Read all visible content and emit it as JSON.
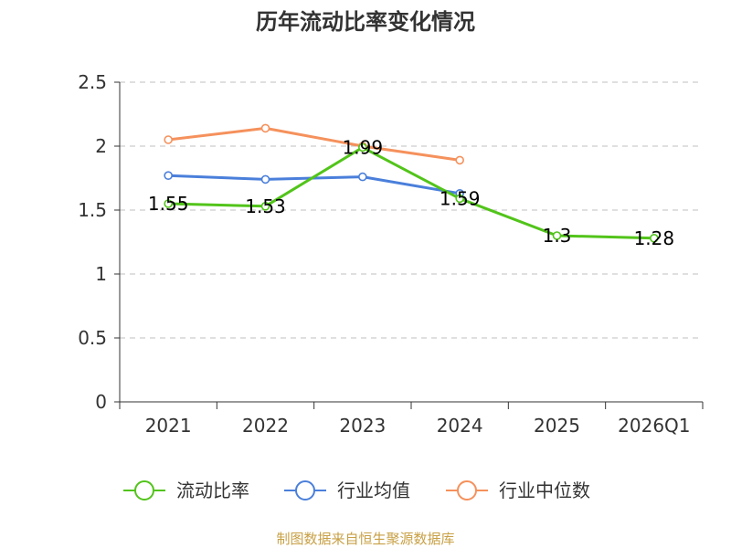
{
  "chart_data": {
    "type": "line",
    "title": "历年流动比率变化情况",
    "categories": [
      "2021",
      "2022",
      "2023",
      "2024",
      "2025",
      "2026Q1"
    ],
    "y_ticks": [
      "0",
      "0.5",
      "1",
      "1.5",
      "2",
      "2.5"
    ],
    "ylim": [
      0,
      2.5
    ],
    "grid": true,
    "legend_position": "bottom",
    "series": [
      {
        "name": "流动比率",
        "color": "#52c41a",
        "values": [
          1.55,
          1.53,
          1.99,
          1.59,
          1.3,
          1.28
        ],
        "labels": [
          "1.55",
          "1.53",
          "1.99",
          "1.59",
          "1.3",
          "1.28"
        ]
      },
      {
        "name": "行业均值",
        "color": "#4a7fdb",
        "values": [
          1.77,
          1.74,
          1.76,
          1.63,
          null,
          null
        ]
      },
      {
        "name": "行业中位数",
        "color": "#f5915c",
        "values": [
          2.05,
          2.14,
          2.0,
          1.89,
          null,
          null
        ]
      }
    ],
    "source": "制图数据来自恒生聚源数据库"
  }
}
